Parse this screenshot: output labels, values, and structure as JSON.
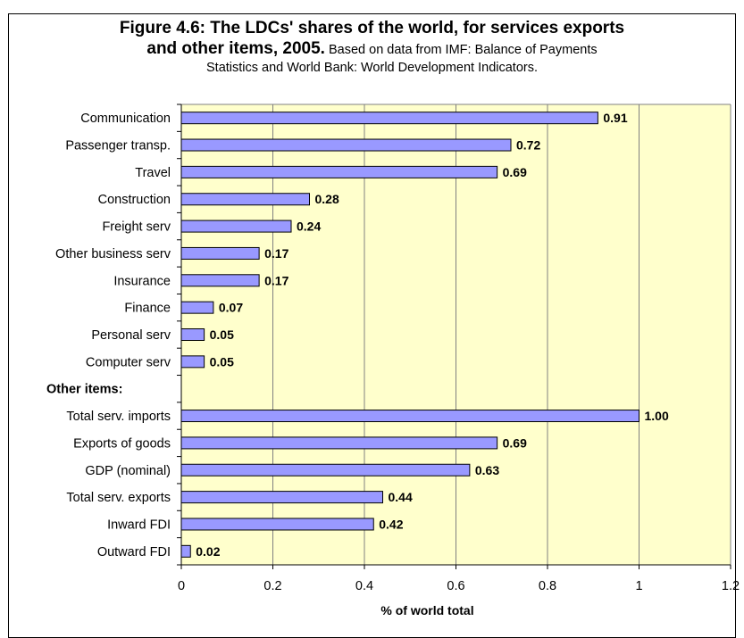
{
  "title": {
    "line1": "Figure 4.6: The LDCs' shares of the world, for services exports",
    "line2_bold": "and other items, 2005.",
    "line2_normal": " Based on data from IMF: Balance of Payments",
    "line3": "Statistics and World Bank: World Development Indicators."
  },
  "chart_data": {
    "type": "bar",
    "orientation": "horizontal",
    "title": "Figure 4.6: The LDCs' shares of the world, for services exports and other items, 2005.",
    "subtitle": "Based on data from IMF: Balance of Payments Statistics and World Bank: World Development Indicators.",
    "xlabel": "% of world total",
    "ylabel": "",
    "xlim": [
      0,
      1.2
    ],
    "xticks": [
      "0",
      "0.2",
      "0.4",
      "0.6",
      "0.8",
      "1",
      "1.2"
    ],
    "grid": true,
    "legend": "none",
    "plot_background": "#ffffcc",
    "bar_color": "#9999ff",
    "categories": [
      "Communication",
      "Passenger transp.",
      "Travel",
      "Construction",
      "Freight serv",
      "Other business serv",
      "Insurance",
      "Finance",
      "Personal serv",
      "Computer serv",
      "Other items:",
      "Total serv. imports",
      "Exports of goods",
      "GDP (nominal)",
      "Total serv. exports",
      "Inward FDI",
      "Outward FDI"
    ],
    "values": [
      0.91,
      0.72,
      0.69,
      0.28,
      0.24,
      0.17,
      0.17,
      0.07,
      0.05,
      0.05,
      null,
      1.0,
      0.69,
      0.63,
      0.44,
      0.42,
      0.02
    ],
    "data_labels": [
      "0.91",
      "0.72",
      "0.69",
      "0.28",
      "0.24",
      "0.17",
      "0.17",
      "0.07",
      "0.05",
      "0.05",
      "",
      "1.00",
      "0.69",
      "0.63",
      "0.44",
      "0.42",
      "0.02"
    ],
    "bold_categories": [
      "Other items:"
    ]
  }
}
